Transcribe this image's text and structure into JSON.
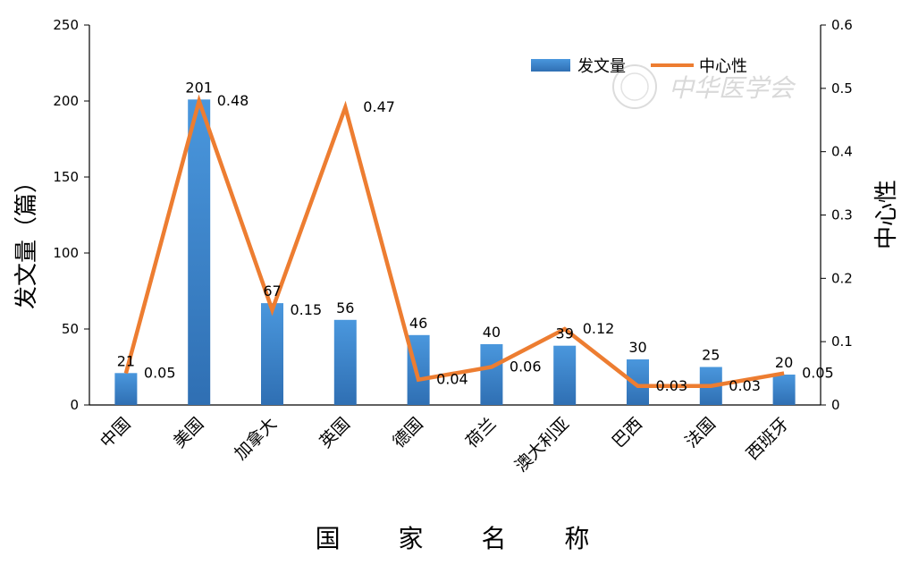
{
  "chart_data": {
    "type": "bar",
    "categories": [
      "中国",
      "美国",
      "加拿大",
      "英国",
      "德国",
      "荷兰",
      "澳大利亚",
      "巴西",
      "法国",
      "西班牙"
    ],
    "series": [
      {
        "name": "发文量",
        "type": "bar",
        "axis": "left",
        "values": [
          21,
          201,
          67,
          56,
          46,
          40,
          39,
          30,
          25,
          20
        ],
        "color": "#3f86cc"
      },
      {
        "name": "中心性",
        "type": "line",
        "axis": "right",
        "values": [
          0.05,
          0.48,
          0.15,
          0.47,
          0.04,
          0.06,
          0.12,
          0.03,
          0.03,
          0.05
        ],
        "color": "#ed7d31"
      }
    ],
    "bar_labels": [
      "21",
      "201",
      "67",
      "56",
      "46",
      "40",
      "39",
      "30",
      "25",
      "20"
    ],
    "line_labels": [
      "0.05",
      "0.48",
      "0.15",
      "0.47",
      "0.04",
      "0.06",
      "0.12",
      "0.03",
      "0.03",
      "0.05"
    ],
    "left_axis": {
      "label": "发文量（篇）",
      "ylim": [
        0,
        250
      ],
      "ticks": [
        "0",
        "50",
        "100",
        "150",
        "200",
        "250"
      ]
    },
    "right_axis": {
      "label": "中心性",
      "ylim": [
        0,
        0.6
      ],
      "ticks": [
        "0",
        "0.1",
        "0.2",
        "0.3",
        "0.4",
        "0.5",
        "0.6"
      ]
    },
    "xlabel": "国 家 名 称",
    "legend": {
      "position": "top-right",
      "items": [
        "发文量",
        "中心性"
      ]
    },
    "grid": false
  },
  "watermark": "中华医学会"
}
